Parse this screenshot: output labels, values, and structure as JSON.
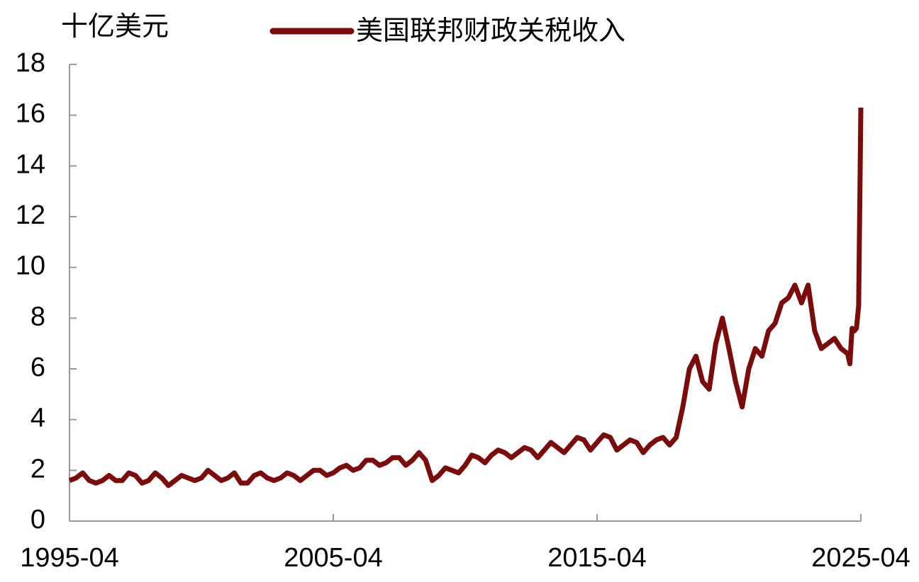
{
  "chart_data": {
    "type": "line",
    "y_axis_label": "十亿美元",
    "x": [
      "1995-04",
      "1995-07",
      "1995-10",
      "1996-01",
      "1996-04",
      "1996-07",
      "1996-10",
      "1997-01",
      "1997-04",
      "1997-07",
      "1997-10",
      "1998-01",
      "1998-04",
      "1998-07",
      "1998-10",
      "1999-01",
      "1999-04",
      "1999-07",
      "1999-10",
      "2000-01",
      "2000-04",
      "2000-07",
      "2000-10",
      "2001-01",
      "2001-04",
      "2001-07",
      "2001-10",
      "2002-01",
      "2002-04",
      "2002-07",
      "2002-10",
      "2003-01",
      "2003-04",
      "2003-07",
      "2003-10",
      "2004-01",
      "2004-04",
      "2004-07",
      "2004-10",
      "2005-01",
      "2005-04",
      "2005-07",
      "2005-10",
      "2006-01",
      "2006-04",
      "2006-07",
      "2006-10",
      "2007-01",
      "2007-04",
      "2007-07",
      "2007-10",
      "2008-01",
      "2008-04",
      "2008-07",
      "2008-10",
      "2009-01",
      "2009-04",
      "2009-07",
      "2009-10",
      "2010-01",
      "2010-04",
      "2010-07",
      "2010-10",
      "2011-01",
      "2011-04",
      "2011-07",
      "2011-10",
      "2012-01",
      "2012-04",
      "2012-07",
      "2012-10",
      "2013-01",
      "2013-04",
      "2013-07",
      "2013-10",
      "2014-01",
      "2014-04",
      "2014-07",
      "2014-10",
      "2015-01",
      "2015-04",
      "2015-07",
      "2015-10",
      "2016-01",
      "2016-04",
      "2016-07",
      "2016-10",
      "2017-01",
      "2017-04",
      "2017-07",
      "2017-10",
      "2018-01",
      "2018-04",
      "2018-07",
      "2018-10",
      "2019-01",
      "2019-04",
      "2019-07",
      "2019-10",
      "2020-01",
      "2020-04",
      "2020-07",
      "2020-10",
      "2021-01",
      "2021-04",
      "2021-07",
      "2021-10",
      "2022-01",
      "2022-04",
      "2022-07",
      "2022-10",
      "2023-01",
      "2023-04",
      "2023-07",
      "2023-10",
      "2024-01",
      "2024-04",
      "2024-07",
      "2024-10",
      "2024-11",
      "2024-12",
      "2025-01",
      "2025-02",
      "2025-03",
      "2025-04"
    ],
    "series": [
      {
        "name": "美国联邦财政关税收入",
        "color": "#7b0c0c",
        "values": [
          1.6,
          1.7,
          1.9,
          1.6,
          1.5,
          1.6,
          1.8,
          1.6,
          1.6,
          1.9,
          1.8,
          1.5,
          1.6,
          1.9,
          1.7,
          1.4,
          1.6,
          1.8,
          1.7,
          1.6,
          1.7,
          2.0,
          1.8,
          1.6,
          1.7,
          1.9,
          1.5,
          1.5,
          1.8,
          1.9,
          1.7,
          1.6,
          1.7,
          1.9,
          1.8,
          1.6,
          1.8,
          2.0,
          2.0,
          1.8,
          1.9,
          2.1,
          2.2,
          2.0,
          2.1,
          2.4,
          2.4,
          2.2,
          2.3,
          2.5,
          2.5,
          2.2,
          2.4,
          2.7,
          2.4,
          1.6,
          1.8,
          2.1,
          2.0,
          1.9,
          2.2,
          2.6,
          2.5,
          2.3,
          2.6,
          2.8,
          2.7,
          2.5,
          2.7,
          2.9,
          2.8,
          2.5,
          2.8,
          3.1,
          2.9,
          2.7,
          3.0,
          3.3,
          3.2,
          2.8,
          3.1,
          3.4,
          3.3,
          2.8,
          3.0,
          3.2,
          3.1,
          2.7,
          3.0,
          3.2,
          3.3,
          3.0,
          3.3,
          4.5,
          6.0,
          6.5,
          5.5,
          5.2,
          7.0,
          8.0,
          6.8,
          5.5,
          4.5,
          6.0,
          6.8,
          6.5,
          7.5,
          7.8,
          8.6,
          8.8,
          9.3,
          8.6,
          9.3,
          7.5,
          6.8,
          7.0,
          7.2,
          6.8,
          6.6,
          6.2,
          7.6,
          7.5,
          7.6,
          8.5,
          16.3
        ]
      }
    ],
    "xlim": [
      "1995-04",
      "2025-04"
    ],
    "xticks": [
      "1995-04",
      "2005-04",
      "2015-04",
      "2025-04"
    ],
    "ylim": [
      0,
      18
    ],
    "yticks": [
      0,
      2,
      4,
      6,
      8,
      10,
      12,
      14,
      16,
      18
    ],
    "legend": "top"
  }
}
